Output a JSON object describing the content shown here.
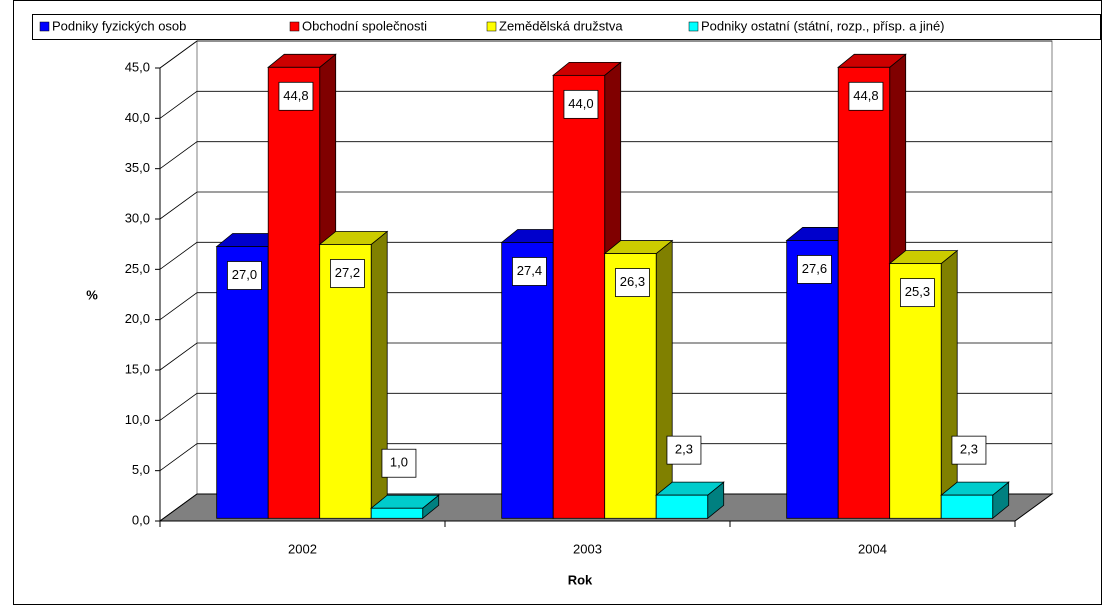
{
  "chart_data": {
    "type": "bar3d",
    "y_axis_label": "%",
    "x_axis_label": "Rok",
    "categories": [
      "2002",
      "2003",
      "2004"
    ],
    "series": [
      {
        "name": "Podniky fyzických osob",
        "color": "#0000ff",
        "side_color": "#000080",
        "values": [
          27.0,
          27.4,
          27.6
        ],
        "value_labels": [
          "27,0",
          "27,4",
          "27,6"
        ]
      },
      {
        "name": "Obchodní společnosti",
        "color": "#ff0000",
        "side_color": "#800000",
        "values": [
          44.8,
          44.0,
          44.8
        ],
        "value_labels": [
          "44,8",
          "44,0",
          "44,8"
        ]
      },
      {
        "name": "Zemědělská družstva",
        "color": "#ffff00",
        "side_color": "#808000",
        "values": [
          27.2,
          26.3,
          25.3
        ],
        "value_labels": [
          "27,2",
          "26,3",
          "25,3"
        ]
      },
      {
        "name": "Podniky ostatní (státní, rozp., přísp. a jiné)",
        "color": "#00ffff",
        "side_color": "#008080",
        "values": [
          1.0,
          2.3,
          2.3
        ],
        "value_labels": [
          "1,0",
          "2,3",
          "2,3"
        ]
      }
    ],
    "ylim": [
      0,
      45
    ],
    "yticks": [
      {
        "value": 0,
        "label": "0,0"
      },
      {
        "value": 5,
        "label": "5,0"
      },
      {
        "value": 10,
        "label": "10,0"
      },
      {
        "value": 15,
        "label": "15,0"
      },
      {
        "value": 20,
        "label": "20,0"
      },
      {
        "value": 25,
        "label": "25,0"
      },
      {
        "value": 30,
        "label": "30,0"
      },
      {
        "value": 35,
        "label": "35,0"
      },
      {
        "value": 40,
        "label": "40,0"
      },
      {
        "value": 45,
        "label": "45,0"
      }
    ],
    "grid": true,
    "legend": "top"
  }
}
